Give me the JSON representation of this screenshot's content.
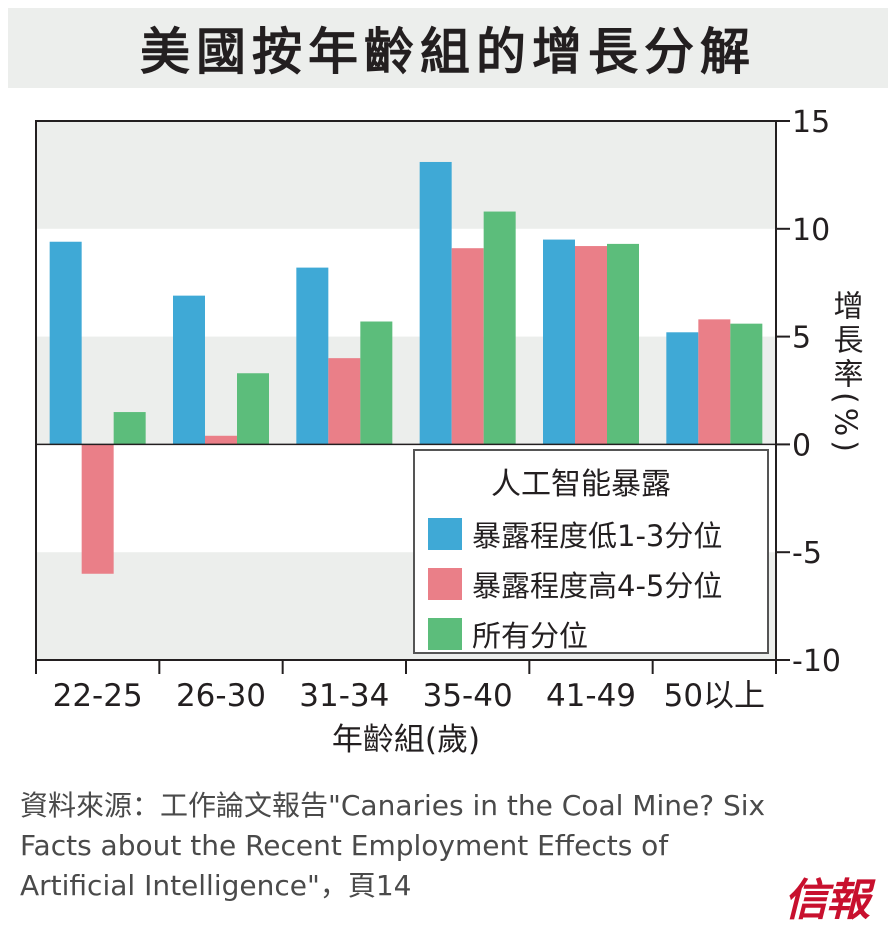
{
  "title": "美國按年齡組的增長分解",
  "source_text": "資料來源：工作論文報告\"Canaries in the Coal Mine? Six Facts about the Recent Employment Effects of Artificial Intelligence\"，頁14",
  "logo_text": "信報",
  "colors": {
    "title_bg": "#eceeec",
    "band": "#eceeec",
    "series": [
      "#3fa9d6",
      "#ea7f88",
      "#5cbd7b"
    ],
    "logo": "#c8102e"
  },
  "chart_data": {
    "type": "bar",
    "xlabel": "年齡組(歲)",
    "ylabel": "增長率(%)",
    "ylim": [
      -10,
      15
    ],
    "yticks": [
      15,
      10,
      5,
      0,
      -5,
      -10
    ],
    "y_axis_side": "right",
    "categories": [
      "22-25",
      "26-30",
      "31-34",
      "35-40",
      "41-49",
      "50以上"
    ],
    "legend": {
      "title": "人工智能暴露",
      "placement": "bottom-right"
    },
    "series": [
      {
        "name": "暴露程度低1-3分位",
        "values": [
          9.4,
          6.9,
          8.2,
          13.1,
          9.5,
          5.2
        ]
      },
      {
        "name": "暴露程度高4-5分位",
        "values": [
          -6.0,
          0.4,
          4.0,
          9.1,
          9.2,
          5.8
        ]
      },
      {
        "name": "所有分位",
        "values": [
          1.5,
          3.3,
          5.7,
          10.8,
          9.3,
          5.6
        ]
      }
    ],
    "grid": "alternating-bands"
  }
}
